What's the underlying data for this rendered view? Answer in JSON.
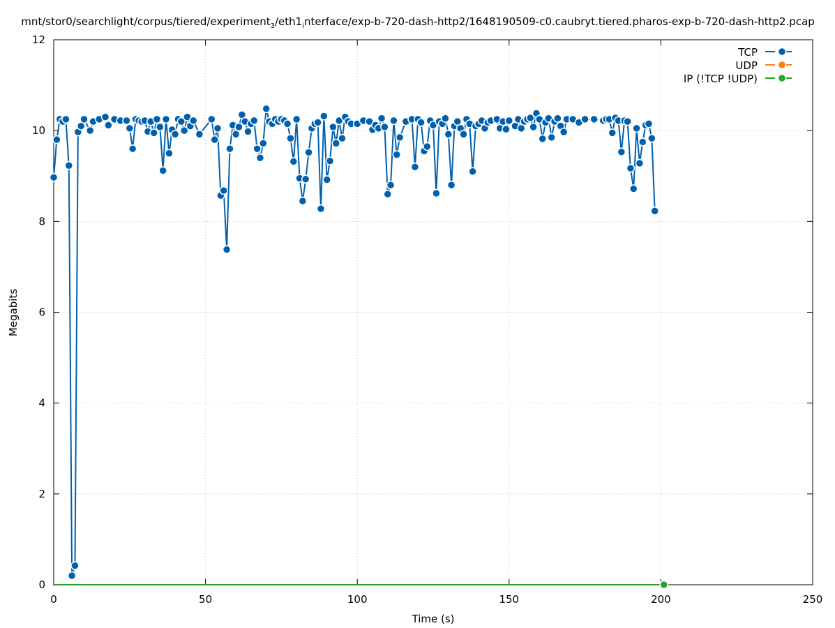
{
  "chart_data": {
    "type": "line",
    "title_parts": {
      "a": "mnt/stor0/searchlight/corpus/tiered/experiment",
      "a_sub": "3",
      "b": "/eth1",
      "b_sub": "i",
      "c": "nterface/exp-b-720-dash-http2/1648190509-c0.caubryt.tiered.pharos-exp-b-720-dash-http2.pcap"
    },
    "xlabel": "Time (s)",
    "ylabel": "Megabits",
    "xlim": [
      0,
      250
    ],
    "ylim": [
      0,
      12
    ],
    "x_ticks": [
      "0",
      "50",
      "100",
      "150",
      "200",
      "250"
    ],
    "y_ticks": [
      "0",
      "2",
      "4",
      "6",
      "8",
      "10",
      "12"
    ],
    "grid": true,
    "legend_position": "top-right",
    "series": [
      {
        "name": "TCP",
        "color": "#0060ad",
        "points": [
          [
            0,
            8.97
          ],
          [
            1,
            9.8
          ],
          [
            2,
            10.25
          ],
          [
            3,
            10.2
          ],
          [
            4,
            10.25
          ],
          [
            5,
            9.23
          ],
          [
            6,
            0.2
          ],
          [
            7,
            0.42
          ],
          [
            8,
            9.97
          ],
          [
            9,
            10.1
          ],
          [
            10,
            10.25
          ],
          [
            12,
            10.0
          ],
          [
            13,
            10.2
          ],
          [
            15,
            10.25
          ],
          [
            17,
            10.3
          ],
          [
            18,
            10.12
          ],
          [
            20,
            10.25
          ],
          [
            22,
            10.22
          ],
          [
            24,
            10.22
          ],
          [
            25,
            10.05
          ],
          [
            26,
            9.6
          ],
          [
            27,
            10.25
          ],
          [
            28,
            10.22
          ],
          [
            29,
            10.2
          ],
          [
            30,
            10.22
          ],
          [
            31,
            9.98
          ],
          [
            32,
            10.2
          ],
          [
            33,
            9.95
          ],
          [
            34,
            10.25
          ],
          [
            35,
            10.08
          ],
          [
            36,
            9.12
          ],
          [
            37,
            10.25
          ],
          [
            38,
            9.5
          ],
          [
            39,
            10.02
          ],
          [
            40,
            9.92
          ],
          [
            41,
            10.25
          ],
          [
            42,
            10.2
          ],
          [
            43,
            10.0
          ],
          [
            44,
            10.3
          ],
          [
            45,
            10.1
          ],
          [
            46,
            10.22
          ],
          [
            48,
            9.92
          ],
          [
            52,
            10.25
          ],
          [
            53,
            9.8
          ],
          [
            54,
            10.05
          ],
          [
            55,
            8.57
          ],
          [
            56,
            8.68
          ],
          [
            57,
            7.38
          ],
          [
            58,
            9.6
          ],
          [
            59,
            10.12
          ],
          [
            60,
            9.92
          ],
          [
            61,
            10.08
          ],
          [
            62,
            10.35
          ],
          [
            63,
            10.2
          ],
          [
            64,
            9.98
          ],
          [
            65,
            10.15
          ],
          [
            66,
            10.22
          ],
          [
            67,
            9.6
          ],
          [
            68,
            9.4
          ],
          [
            69,
            9.72
          ],
          [
            70,
            10.48
          ],
          [
            71,
            10.2
          ],
          [
            72,
            10.15
          ],
          [
            73,
            10.25
          ],
          [
            74,
            10.2
          ],
          [
            75,
            10.25
          ],
          [
            76,
            10.22
          ],
          [
            77,
            10.15
          ],
          [
            78,
            9.83
          ],
          [
            79,
            9.32
          ],
          [
            80,
            10.25
          ],
          [
            81,
            8.95
          ],
          [
            82,
            8.45
          ],
          [
            83,
            8.93
          ],
          [
            84,
            9.52
          ],
          [
            85,
            10.05
          ],
          [
            86,
            10.15
          ],
          [
            87,
            10.18
          ],
          [
            88,
            8.28
          ],
          [
            89,
            10.32
          ],
          [
            90,
            8.92
          ],
          [
            91,
            9.33
          ],
          [
            92,
            10.08
          ],
          [
            93,
            9.72
          ],
          [
            94,
            10.22
          ],
          [
            95,
            9.83
          ],
          [
            96,
            10.3
          ],
          [
            97,
            10.2
          ],
          [
            98,
            10.15
          ],
          [
            100,
            10.15
          ],
          [
            102,
            10.22
          ],
          [
            104,
            10.2
          ],
          [
            105,
            10.02
          ],
          [
            106,
            10.12
          ],
          [
            107,
            10.05
          ],
          [
            108,
            10.27
          ],
          [
            109,
            10.08
          ],
          [
            110,
            8.6
          ],
          [
            111,
            8.8
          ],
          [
            112,
            10.22
          ],
          [
            113,
            9.47
          ],
          [
            114,
            9.85
          ],
          [
            116,
            10.2
          ],
          [
            118,
            10.25
          ],
          [
            119,
            9.2
          ],
          [
            120,
            10.25
          ],
          [
            121,
            10.18
          ],
          [
            122,
            9.55
          ],
          [
            123,
            9.65
          ],
          [
            124,
            10.22
          ],
          [
            125,
            10.12
          ],
          [
            126,
            8.62
          ],
          [
            127,
            10.2
          ],
          [
            128,
            10.15
          ],
          [
            129,
            10.27
          ],
          [
            130,
            9.92
          ],
          [
            131,
            8.8
          ],
          [
            132,
            10.1
          ],
          [
            133,
            10.2
          ],
          [
            134,
            10.05
          ],
          [
            135,
            9.92
          ],
          [
            136,
            10.25
          ],
          [
            137,
            10.15
          ],
          [
            138,
            9.1
          ],
          [
            139,
            10.1
          ],
          [
            140,
            10.15
          ],
          [
            141,
            10.22
          ],
          [
            142,
            10.05
          ],
          [
            143,
            10.18
          ],
          [
            144,
            10.22
          ],
          [
            146,
            10.25
          ],
          [
            147,
            10.05
          ],
          [
            148,
            10.2
          ],
          [
            149,
            10.03
          ],
          [
            150,
            10.22
          ],
          [
            152,
            10.1
          ],
          [
            153,
            10.25
          ],
          [
            154,
            10.05
          ],
          [
            155,
            10.2
          ],
          [
            156,
            10.25
          ],
          [
            157,
            10.28
          ],
          [
            158,
            10.08
          ],
          [
            159,
            10.38
          ],
          [
            160,
            10.25
          ],
          [
            161,
            9.82
          ],
          [
            162,
            10.18
          ],
          [
            163,
            10.27
          ],
          [
            164,
            9.85
          ],
          [
            165,
            10.2
          ],
          [
            166,
            10.27
          ],
          [
            167,
            10.1
          ],
          [
            168,
            9.97
          ],
          [
            169,
            10.25
          ],
          [
            171,
            10.25
          ],
          [
            173,
            10.18
          ],
          [
            175,
            10.25
          ],
          [
            178,
            10.25
          ],
          [
            181,
            10.22
          ],
          [
            182,
            10.25
          ],
          [
            183,
            10.25
          ],
          [
            184,
            9.95
          ],
          [
            185,
            10.28
          ],
          [
            186,
            10.22
          ],
          [
            187,
            9.53
          ],
          [
            188,
            10.22
          ],
          [
            189,
            10.2
          ],
          [
            190,
            9.17
          ],
          [
            191,
            8.72
          ],
          [
            192,
            10.05
          ],
          [
            193,
            9.28
          ],
          [
            194,
            9.75
          ],
          [
            195,
            10.12
          ],
          [
            196,
            10.15
          ],
          [
            197,
            9.83
          ],
          [
            198,
            8.23
          ]
        ]
      },
      {
        "name": "UDP",
        "color": "#ff7f0e",
        "points": []
      },
      {
        "name": "IP (!TCP  !UDP)",
        "color": "#2ca02c",
        "points": [
          [
            0,
            0
          ],
          [
            2,
            0
          ],
          [
            4,
            0
          ],
          [
            6,
            0
          ],
          [
            8,
            0
          ],
          [
            10,
            0
          ],
          [
            12,
            0
          ],
          [
            14,
            0
          ],
          [
            16,
            0
          ],
          [
            18,
            0
          ],
          [
            20,
            0
          ],
          [
            22,
            0
          ],
          [
            24,
            0
          ],
          [
            26,
            0
          ],
          [
            28,
            0
          ],
          [
            30,
            0
          ],
          [
            32,
            0
          ],
          [
            34,
            0
          ],
          [
            36,
            0
          ],
          [
            38,
            0
          ],
          [
            40,
            0
          ],
          [
            42,
            0
          ],
          [
            44,
            0
          ],
          [
            46,
            0
          ],
          [
            48,
            0
          ],
          [
            50,
            0
          ],
          [
            52,
            0
          ],
          [
            54,
            0
          ],
          [
            56,
            0
          ],
          [
            58,
            0
          ],
          [
            60,
            0
          ],
          [
            62,
            0
          ],
          [
            64,
            0
          ],
          [
            66,
            0
          ],
          [
            68,
            0
          ],
          [
            70,
            0
          ],
          [
            72,
            0
          ],
          [
            74,
            0
          ],
          [
            76,
            0
          ],
          [
            78,
            0
          ],
          [
            80,
            0
          ],
          [
            82,
            0
          ],
          [
            84,
            0
          ],
          [
            86,
            0
          ],
          [
            88,
            0
          ],
          [
            90,
            0
          ],
          [
            92,
            0
          ],
          [
            94,
            0
          ],
          [
            96,
            0
          ],
          [
            98,
            0
          ],
          [
            100,
            0
          ],
          [
            102,
            0
          ],
          [
            104,
            0
          ],
          [
            106,
            0
          ],
          [
            108,
            0
          ],
          [
            110,
            0
          ],
          [
            112,
            0
          ],
          [
            114,
            0
          ],
          [
            116,
            0
          ],
          [
            118,
            0
          ],
          [
            120,
            0
          ],
          [
            122,
            0
          ],
          [
            124,
            0
          ],
          [
            126,
            0
          ],
          [
            128,
            0
          ],
          [
            130,
            0
          ],
          [
            132,
            0
          ],
          [
            134,
            0
          ],
          [
            136,
            0
          ],
          [
            138,
            0
          ],
          [
            140,
            0
          ],
          [
            142,
            0
          ],
          [
            144,
            0
          ],
          [
            146,
            0
          ],
          [
            148,
            0
          ],
          [
            150,
            0
          ],
          [
            152,
            0
          ],
          [
            154,
            0
          ],
          [
            156,
            0
          ],
          [
            158,
            0
          ],
          [
            160,
            0
          ],
          [
            162,
            0
          ],
          [
            164,
            0
          ],
          [
            166,
            0
          ],
          [
            168,
            0
          ],
          [
            170,
            0
          ],
          [
            172,
            0
          ],
          [
            174,
            0
          ],
          [
            176,
            0
          ],
          [
            178,
            0
          ],
          [
            180,
            0
          ],
          [
            182,
            0
          ],
          [
            184,
            0
          ],
          [
            186,
            0
          ],
          [
            188,
            0
          ],
          [
            190,
            0
          ],
          [
            192,
            0
          ],
          [
            194,
            0
          ],
          [
            196,
            0
          ],
          [
            198,
            0
          ],
          [
            201,
            0
          ]
        ]
      }
    ]
  }
}
